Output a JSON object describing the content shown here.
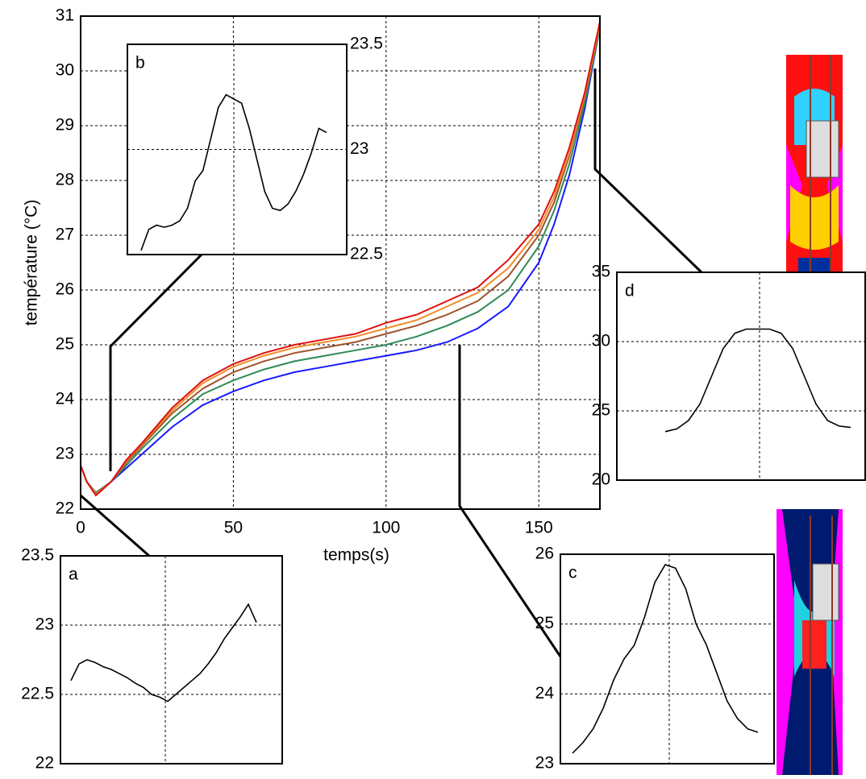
{
  "chart_data": [
    {
      "type": "line",
      "xlabel": "temps(s)",
      "ylabel": "température (°C)",
      "xlim": [
        0,
        170
      ],
      "ylim": [
        22,
        31
      ],
      "xticks": [
        0,
        50,
        100,
        150
      ],
      "yticks": [
        22,
        23,
        24,
        25,
        26,
        27,
        28,
        29,
        30,
        31
      ],
      "grid": true,
      "x": [
        0,
        2,
        5,
        10,
        15,
        20,
        30,
        40,
        50,
        60,
        70,
        80,
        90,
        100,
        110,
        120,
        130,
        140,
        150,
        155,
        160,
        165,
        170
      ],
      "series": [
        {
          "color": "#1a1aff",
          "values": [
            22.8,
            22.5,
            22.3,
            22.5,
            22.75,
            23.0,
            23.5,
            23.9,
            24.15,
            24.35,
            24.5,
            24.6,
            24.7,
            24.8,
            24.9,
            25.05,
            25.3,
            25.7,
            26.5,
            27.2,
            28.1,
            29.3,
            30.8
          ]
        },
        {
          "color": "#2e8b57",
          "values": [
            22.8,
            22.5,
            22.3,
            22.5,
            22.8,
            23.1,
            23.65,
            24.1,
            24.35,
            24.55,
            24.7,
            24.8,
            24.9,
            25.0,
            25.15,
            25.35,
            25.6,
            26.0,
            26.8,
            27.45,
            28.3,
            29.4,
            30.8
          ]
        },
        {
          "color": "#a0522d",
          "values": [
            22.8,
            22.5,
            22.28,
            22.5,
            22.85,
            23.15,
            23.75,
            24.2,
            24.5,
            24.7,
            24.85,
            24.95,
            25.05,
            25.2,
            25.35,
            25.55,
            25.8,
            26.25,
            27.0,
            27.6,
            28.45,
            29.5,
            30.85
          ]
        },
        {
          "color": "#f08c28",
          "values": [
            22.8,
            22.5,
            22.27,
            22.5,
            22.88,
            23.18,
            23.8,
            24.3,
            24.6,
            24.8,
            24.95,
            25.05,
            25.15,
            25.3,
            25.45,
            25.7,
            25.95,
            26.4,
            27.1,
            27.7,
            28.5,
            29.55,
            30.85
          ]
        },
        {
          "color": "#e01010",
          "values": [
            22.8,
            22.5,
            22.25,
            22.5,
            22.9,
            23.2,
            23.85,
            24.35,
            24.65,
            24.85,
            25.0,
            25.1,
            25.2,
            25.4,
            25.55,
            25.8,
            26.05,
            26.55,
            27.2,
            27.8,
            28.6,
            29.6,
            30.9
          ]
        }
      ]
    },
    {
      "type": "line",
      "label": "a",
      "ylim": [
        22,
        23.5
      ],
      "yticks": [
        22,
        22.5,
        23,
        23.5
      ],
      "grid": true,
      "color": "#000000",
      "values": [
        22.6,
        22.72,
        22.75,
        22.73,
        22.7,
        22.68,
        22.65,
        22.62,
        22.58,
        22.55,
        22.5,
        22.48,
        22.45,
        22.5,
        22.55,
        22.6,
        22.65,
        22.72,
        22.8,
        22.9,
        22.98,
        23.06,
        23.15,
        23.02
      ]
    },
    {
      "type": "line",
      "label": "b",
      "ylim": [
        22.5,
        23.5
      ],
      "yticks": [
        22.5,
        23,
        23.5
      ],
      "grid": true,
      "color": "#000000",
      "values": [
        22.52,
        22.62,
        22.64,
        22.63,
        22.64,
        22.66,
        22.72,
        22.85,
        22.9,
        23.05,
        23.2,
        23.26,
        23.24,
        23.22,
        23.1,
        22.95,
        22.8,
        22.72,
        22.71,
        22.74,
        22.8,
        22.88,
        22.98,
        23.1,
        23.08
      ]
    },
    {
      "type": "line",
      "label": "c",
      "ylim": [
        23,
        26
      ],
      "yticks": [
        23,
        24,
        25,
        26
      ],
      "grid": true,
      "color": "#000000",
      "values": [
        23.15,
        23.3,
        23.5,
        23.8,
        24.2,
        24.5,
        24.7,
        25.1,
        25.6,
        25.85,
        25.8,
        25.5,
        25.0,
        24.7,
        24.3,
        23.9,
        23.65,
        23.5,
        23.45
      ]
    },
    {
      "type": "line",
      "label": "d",
      "ylim": [
        20,
        35
      ],
      "yticks": [
        20,
        25,
        30,
        35
      ],
      "grid": true,
      "color": "#000000",
      "values": [
        23.5,
        23.7,
        24.3,
        25.5,
        27.5,
        29.5,
        30.6,
        30.9,
        30.9,
        30.9,
        30.6,
        29.5,
        27.5,
        25.5,
        24.3,
        23.9,
        23.8
      ]
    }
  ]
}
